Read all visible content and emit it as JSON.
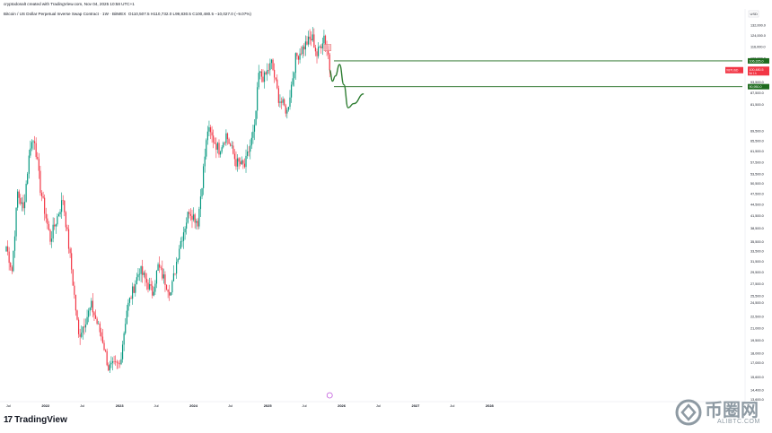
{
  "header": {
    "line1": "cryptodonalt created with TradingView.com, Nov 04, 2025 10:58 UTC+1",
    "symbol": "Bitcoin / US Dollar Perpetual Inverse Swap Contract · 1W · BitMEX",
    "ohlc": "O110,507.5 H110,732.0 L99,830.5 C100,480.5 −10,027.0 (−9.07%)"
  },
  "currency_badge": "USD",
  "footer": {
    "brand": "TradingView",
    "logo_mark": "17"
  },
  "watermark": {
    "cn": "币圈网",
    "en": "ALIBTC.COM"
  },
  "colors": {
    "up": "#089981",
    "down": "#f23645",
    "bg": "#ffffff",
    "axis_text": "#131722",
    "level_line": "#1e6b1e",
    "projection": "#2e7d32",
    "zone": "#f5b5bb",
    "event": "#c158dc"
  },
  "chart_data": {
    "type": "candlestick",
    "timeframe": "1W",
    "title": "",
    "xlabel": "",
    "ylabel": "",
    "y_scale": "log",
    "ylim": [
      13800,
      135000
    ],
    "x_ticks": [
      "Jul",
      "2022",
      "Jul",
      "2023",
      "Jul",
      "2024",
      "Jul",
      "2025",
      "Jul",
      "2026",
      "Jul",
      "2027",
      "Jul",
      "2028"
    ],
    "x_tick_dates": [
      "2021-07-01",
      "2022-01-01",
      "2022-07-01",
      "2023-01-01",
      "2023-07-01",
      "2024-01-01",
      "2024-07-01",
      "2025-01-01",
      "2025-07-01",
      "2026-01-01",
      "2026-07-01",
      "2027-01-01",
      "2027-07-01",
      "2028-01-01"
    ],
    "y_ticks": [
      "132,000.0",
      "124,000.0",
      "116,000.0",
      "108,000.0",
      "101,500.0",
      "93,500.0",
      "87,500.0",
      "81,500.0",
      "69,500.0",
      "65,500.0",
      "61,500.0",
      "57,500.0",
      "53,500.0",
      "50,500.0",
      "47,500.0",
      "44,500.0",
      "41,500.0",
      "38,500.0",
      "35,500.0",
      "33,500.0",
      "31,500.0",
      "29,500.0",
      "27,500.0",
      "25,500.0",
      "24,500.0",
      "22,500.0",
      "21,000.0",
      "19,500.0",
      "18,000.0",
      "17,000.0",
      "15,600.0",
      "14,400.0",
      "13,600.0"
    ],
    "start_date": "2021-06-21",
    "close_path": [
      {
        "date": "2021-06-21",
        "close": 34500
      },
      {
        "date": "2021-07-19",
        "close": 29800
      },
      {
        "date": "2021-08-16",
        "close": 47800
      },
      {
        "date": "2021-09-13",
        "close": 43000
      },
      {
        "date": "2021-10-18",
        "close": 64000
      },
      {
        "date": "2021-11-08",
        "close": 66000
      },
      {
        "date": "2021-12-06",
        "close": 49000
      },
      {
        "date": "2022-01-24",
        "close": 36000
      },
      {
        "date": "2022-03-28",
        "close": 46000
      },
      {
        "date": "2022-05-09",
        "close": 30000
      },
      {
        "date": "2022-06-13",
        "close": 20000
      },
      {
        "date": "2022-08-15",
        "close": 24000
      },
      {
        "date": "2022-10-10",
        "close": 19500
      },
      {
        "date": "2022-11-07",
        "close": 16500
      },
      {
        "date": "2023-01-02",
        "close": 16800
      },
      {
        "date": "2023-02-06",
        "close": 23500
      },
      {
        "date": "2023-04-10",
        "close": 30000
      },
      {
        "date": "2023-06-12",
        "close": 26000
      },
      {
        "date": "2023-07-10",
        "close": 30500
      },
      {
        "date": "2023-09-11",
        "close": 26000
      },
      {
        "date": "2023-10-23",
        "close": 34500
      },
      {
        "date": "2023-12-11",
        "close": 43000
      },
      {
        "date": "2024-01-22",
        "close": 40000
      },
      {
        "date": "2024-03-11",
        "close": 70000
      },
      {
        "date": "2024-05-06",
        "close": 62000
      },
      {
        "date": "2024-06-10",
        "close": 68000
      },
      {
        "date": "2024-07-29",
        "close": 57500
      },
      {
        "date": "2024-09-09",
        "close": 56000
      },
      {
        "date": "2024-10-28",
        "close": 70000
      },
      {
        "date": "2024-11-18",
        "close": 98000
      },
      {
        "date": "2024-12-16",
        "close": 96000
      },
      {
        "date": "2025-01-20",
        "close": 105000
      },
      {
        "date": "2025-02-24",
        "close": 85000
      },
      {
        "date": "2025-04-07",
        "close": 78000
      },
      {
        "date": "2025-05-19",
        "close": 108000
      },
      {
        "date": "2025-07-14",
        "close": 119000
      },
      {
        "date": "2025-08-11",
        "close": 122000
      },
      {
        "date": "2025-09-01",
        "close": 110000
      },
      {
        "date": "2025-10-06",
        "close": 124000
      },
      {
        "date": "2025-10-27",
        "close": 110500
      },
      {
        "date": "2025-11-03",
        "close": 100480.5
      }
    ],
    "horizontal_levels": [
      {
        "price": 106300,
        "color": "#1e6b1e",
        "label": "106,325.0"
      },
      {
        "price": 90900,
        "color": "#1e6b1e",
        "label": "90,950.0"
      }
    ],
    "current_price": {
      "label": "100,480.5",
      "symbol_label": "XBTUSD",
      "sub_label": "5d 1h"
    },
    "supply_zone": {
      "x_range": [
        "2025-10-06",
        "2025-11-10"
      ],
      "y_range": [
        113000,
        117500
      ]
    },
    "projection_path": [
      {
        "date": "2025-11-03",
        "price": 100500
      },
      {
        "date": "2025-11-17",
        "price": 94000
      },
      {
        "date": "2025-12-01",
        "price": 97000
      },
      {
        "date": "2025-12-22",
        "price": 104000
      },
      {
        "date": "2026-01-12",
        "price": 92000
      },
      {
        "date": "2026-02-02",
        "price": 80000
      },
      {
        "date": "2026-03-02",
        "price": 82000
      },
      {
        "date": "2026-04-20",
        "price": 87000
      }
    ],
    "event_marker_date": "2025-11-03",
    "grid": false,
    "legend": "none"
  }
}
